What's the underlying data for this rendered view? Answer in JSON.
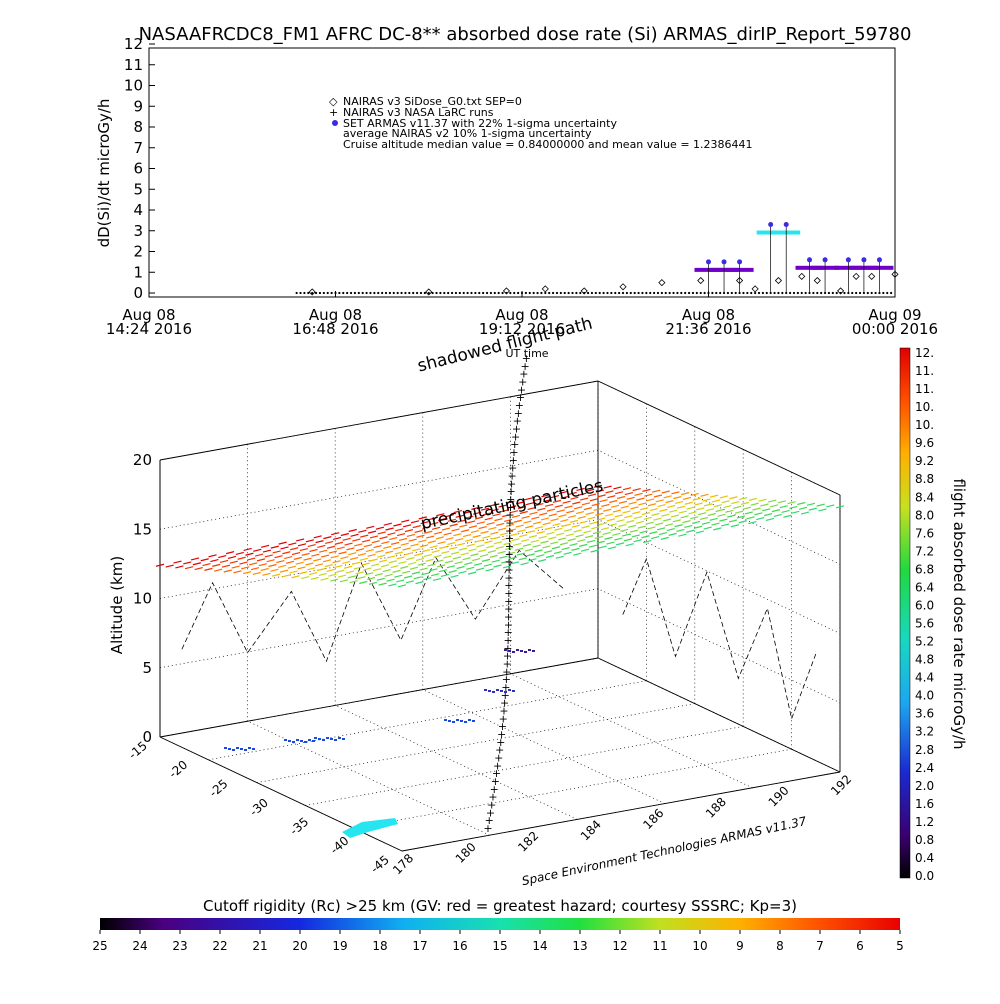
{
  "title": "NASAAFRCDC8_FM1 AFRC DC-8** absorbed dose rate (Si) ARMAS_dirIP_Report_59780",
  "top_chart": {
    "ylabel": "dD(Si)/dt microGy/h",
    "xlabel": "UT time",
    "y_ticks": [
      "0",
      "1",
      "2",
      "3",
      "4",
      "5",
      "6",
      "7",
      "8",
      "9",
      "10",
      "11",
      "12"
    ],
    "x_ticks": [
      {
        "top": "Aug 08",
        "bottom": "14:24 2016"
      },
      {
        "top": "Aug 08",
        "bottom": "16:48 2016"
      },
      {
        "top": "Aug 08",
        "bottom": "19:12 2016"
      },
      {
        "top": "Aug 08",
        "bottom": "21:36 2016"
      },
      {
        "top": "Aug 09",
        "bottom": "00:00 2016"
      }
    ],
    "legend": [
      "NAIRAS v3 SiDose_G0.txt SEP=0",
      "NAIRAS v3 NASA LaRC runs",
      "SET ARMAS v11.37 with 22% 1-sigma uncertainty",
      "average NAIRAS v2 10% 1-sigma uncertainty",
      "Cruise altitude median value = 0.84000000 and mean value = 1.2386441"
    ]
  },
  "chart_data": {
    "type": "scatter",
    "title": "NASAAFRCDC8_FM1 AFRC DC-8** absorbed dose rate (Si) ARMAS_dirIP_Report_59780",
    "xlabel": "UT time",
    "ylabel": "dD(Si)/dt microGy/h",
    "xlim_hours_ut": [
      14.4,
      24.0
    ],
    "ylim": [
      0,
      12
    ],
    "series": [
      {
        "name": "SET ARMAS v11.37 with 22% 1-sigma uncertainty",
        "x_hours_ut": [
          21.6,
          21.8,
          22.0,
          22.4,
          22.6,
          22.9,
          23.1,
          23.4,
          23.6,
          23.8
        ],
        "values": [
          1.5,
          1.5,
          1.5,
          3.3,
          3.3,
          1.6,
          1.6,
          1.6,
          1.6,
          1.6
        ]
      },
      {
        "name": "NAIRAS v3 SiDose_G0.txt SEP=0",
        "x_hours_ut": [
          16.5,
          18.0,
          19.0,
          19.5,
          20.0,
          20.5,
          21.0,
          21.5,
          22.0,
          22.2,
          22.5,
          22.8,
          23.0,
          23.3,
          23.5,
          23.7,
          24.0
        ],
        "values": [
          0.05,
          0.05,
          0.1,
          0.2,
          0.1,
          0.3,
          0.5,
          0.6,
          0.6,
          0.2,
          0.6,
          0.8,
          0.6,
          0.1,
          0.8,
          0.8,
          0.9
        ]
      }
    ]
  },
  "plot3d": {
    "zlabel": "Altitude (km)",
    "z_ticks": [
      "0",
      "5",
      "10",
      "15",
      "20"
    ],
    "lat_ticks": [
      "-15",
      "-20",
      "-25",
      "-30",
      "-35",
      "-40",
      "-45"
    ],
    "lon_ticks": [
      "178",
      "180",
      "182",
      "184",
      "186",
      "188",
      "190",
      "192"
    ],
    "labels": {
      "path": "shadowed flight path",
      "particles": "precipitating particles"
    },
    "credit": "Space Environment Technologies ARMAS v11.37"
  },
  "dose_colorbar": {
    "label": "flight absorbed dose rate microGy/h",
    "ticks": [
      "0.0",
      "0.4",
      "0.8",
      "1.2",
      "1.6",
      "2.0",
      "2.4",
      "2.8",
      "3.2",
      "3.6",
      "4.0",
      "4.4",
      "4.8",
      "5.2",
      "5.6",
      "6.0",
      "6.4",
      "6.8",
      "7.2",
      "7.6",
      "8.0",
      "8.4",
      "8.8",
      "9.2",
      "9.6",
      "10.",
      "10.",
      "11.",
      "11.",
      "12."
    ]
  },
  "rigidity_bar": {
    "label": "Cutoff rigidity (Rc) >25 km (GV: red = greatest hazard; courtesy SSSRC; Kp=3)",
    "ticks": [
      "25",
      "24",
      "23",
      "22",
      "21",
      "20",
      "19",
      "18",
      "17",
      "16",
      "15",
      "14",
      "13",
      "12",
      "11",
      "10",
      "9",
      "8",
      "7",
      "6",
      "5"
    ]
  },
  "colors": {
    "armas": "#3a2be8",
    "armas_purple": "#6e00c8",
    "cyan": "#26e4f0"
  }
}
